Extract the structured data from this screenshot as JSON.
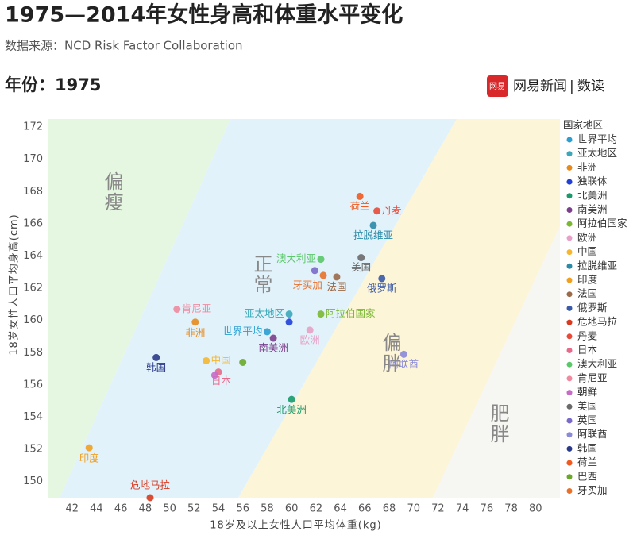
{
  "header": {
    "title": "1975—2014年女性身高和体重水平变化",
    "source": "数据来源：NCD Risk Factor Collaboration",
    "year_label": "年份：1975",
    "logo_icon": "网易",
    "logo_text": "网易新闻",
    "logo_sep": "|",
    "logo_sub": "数读"
  },
  "chart_data": {
    "type": "scatter",
    "x_label": "18岁及以上女性人口平均体重(kg)",
    "y_label": "18岁女性人口平均身高(cm)",
    "xlim": [
      40,
      82
    ],
    "xticks": [
      42,
      44,
      46,
      48,
      50,
      52,
      54,
      56,
      58,
      60,
      62,
      64,
      66,
      68,
      70,
      72,
      74,
      76,
      78,
      80
    ],
    "ylim": [
      149,
      172.5
    ],
    "yticks": [
      150,
      152,
      154,
      156,
      158,
      160,
      162,
      164,
      166,
      168,
      170,
      172
    ],
    "zones": [
      "偏瘦",
      "正常",
      "偏胖",
      "肥胖"
    ],
    "legend_title": "国家地区",
    "legend": "right",
    "series": [
      {
        "name": "世界平均",
        "color": "#2a9fd0",
        "x": 58.0,
        "y": 159.3
      },
      {
        "name": "亚太地区",
        "color": "#3aa8b8",
        "x": 59.8,
        "y": 160.4
      },
      {
        "name": "非洲",
        "color": "#e8891c",
        "x": 52.1,
        "y": 159.9
      },
      {
        "name": "独联体",
        "color": "#1f3fd8",
        "x": 59.8,
        "y": 159.9,
        "labeled": false
      },
      {
        "name": "北美洲",
        "color": "#1a9a6a",
        "x": 60.0,
        "y": 155.1
      },
      {
        "name": "南美洲",
        "color": "#7a3e8c",
        "x": 58.5,
        "y": 158.9
      },
      {
        "name": "阿拉伯国家",
        "color": "#7ab832",
        "x": 62.4,
        "y": 160.4
      },
      {
        "name": "欧洲",
        "color": "#e7a0c8",
        "x": 61.5,
        "y": 159.4
      },
      {
        "name": "中国",
        "color": "#f5b630",
        "x": 53.0,
        "y": 157.5
      },
      {
        "name": "拉脱维亚",
        "color": "#2a8aa8",
        "x": 66.7,
        "y": 165.9
      },
      {
        "name": "印度",
        "color": "#f0a020",
        "x": 43.4,
        "y": 152.1
      },
      {
        "name": "法国",
        "color": "#9a6a4a",
        "x": 63.7,
        "y": 162.7
      },
      {
        "name": "俄罗斯",
        "color": "#3a5aa8",
        "x": 67.4,
        "y": 162.6
      },
      {
        "name": "危地马拉",
        "color": "#d83a20",
        "x": 48.4,
        "y": 149.0
      },
      {
        "name": "丹麦",
        "color": "#e84a3a",
        "x": 67.0,
        "y": 166.8
      },
      {
        "name": "日本",
        "color": "#e86a8a",
        "x": 54.0,
        "y": 156.8
      },
      {
        "name": "澳大利亚",
        "color": "#5ac86a",
        "x": 62.4,
        "y": 163.8
      },
      {
        "name": "肯尼亚",
        "color": "#f08aa0",
        "x": 50.6,
        "y": 160.7
      },
      {
        "name": "朝鲜",
        "color": "#c86ac8",
        "x": 53.7,
        "y": 156.6,
        "labeled": false
      },
      {
        "name": "美国",
        "color": "#6a6a6a",
        "x": 65.7,
        "y": 163.9
      },
      {
        "name": "英国",
        "color": "#7a6ac8",
        "x": 61.9,
        "y": 163.1,
        "labeled": false
      },
      {
        "name": "阿联酋",
        "color": "#8a8ad8",
        "x": 69.2,
        "y": 157.9
      },
      {
        "name": "韩国",
        "color": "#2a3a8a",
        "x": 48.9,
        "y": 157.7
      },
      {
        "name": "荷兰",
        "color": "#f05a20",
        "x": 65.6,
        "y": 167.7
      },
      {
        "name": "巴西",
        "color": "#6aa82a",
        "x": 56.0,
        "y": 157.4,
        "labeled": false
      },
      {
        "name": "牙买加",
        "color": "#e8702a",
        "x": 62.6,
        "y": 162.8
      }
    ]
  }
}
